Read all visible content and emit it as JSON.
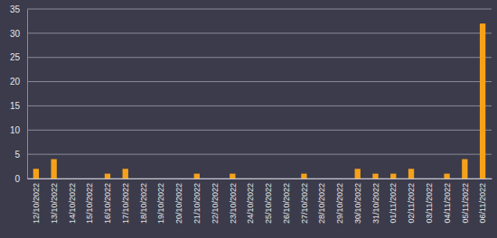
{
  "chart_data": {
    "type": "bar",
    "categories": [
      "12/10/2022",
      "13/10/2022",
      "14/10/2022",
      "15/10/2022",
      "16/10/2022",
      "17/10/2022",
      "18/10/2022",
      "19/10/2022",
      "20/10/2022",
      "21/10/2022",
      "22/10/2022",
      "23/10/2022",
      "24/10/2022",
      "25/10/2022",
      "26/10/2022",
      "27/10/2022",
      "28/10/2022",
      "29/10/2022",
      "30/10/2022",
      "31/10/2022",
      "01/11/2022",
      "02/11/2022",
      "03/11/2022",
      "04/11/2022",
      "05/11/2022",
      "06/11/2022"
    ],
    "values": [
      2,
      4,
      0,
      0,
      1,
      2,
      0,
      0,
      0,
      1,
      0,
      1,
      0,
      0,
      0,
      1,
      0,
      0,
      2,
      1,
      1,
      2,
      0,
      1,
      4,
      32
    ],
    "color": "#f5a21b",
    "ylim": [
      0,
      35
    ],
    "yticks": [
      0,
      5,
      10,
      15,
      20,
      25,
      30,
      35
    ],
    "grid": true
  }
}
